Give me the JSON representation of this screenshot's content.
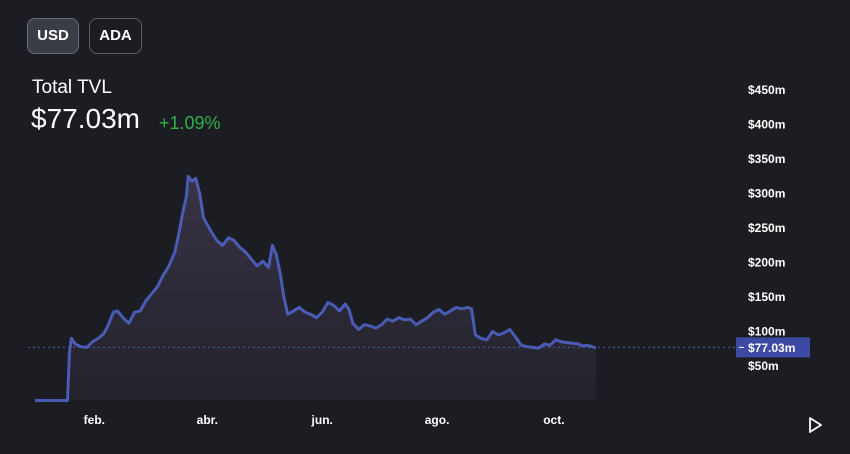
{
  "currency_toggle": {
    "usd_label": "USD",
    "ada_label": "ADA",
    "selected": "USD"
  },
  "header": {
    "label": "Total TVL",
    "value": "$77.03m",
    "change": "+1.09%"
  },
  "colors": {
    "line": "#4a5bb5",
    "fill_top": "#3a3448",
    "change_positive": "#30b24a",
    "current_badge": "#3d4aa3"
  },
  "controls": {
    "play_icon": "play-icon"
  },
  "chart_data": {
    "type": "area",
    "y_ticks": [
      "$50m",
      "$100m",
      "$150m",
      "$200m",
      "$250m",
      "$300m",
      "$350m",
      "$400m",
      "$450m"
    ],
    "y_tick_values": [
      50,
      100,
      150,
      200,
      250,
      300,
      350,
      400,
      450
    ],
    "ylim": [
      0,
      460
    ],
    "x_ticks": [
      "feb.",
      "abr.",
      "jun.",
      "ago.",
      "oct."
    ],
    "x_tick_positions": [
      31,
      90,
      150,
      210,
      271
    ],
    "current_value": 77.03,
    "current_label": "$77.03m",
    "x_unit": "days",
    "points": [
      [
        0,
        0
      ],
      [
        17,
        0
      ],
      [
        18,
        70
      ],
      [
        19,
        90
      ],
      [
        21,
        82
      ],
      [
        24,
        78
      ],
      [
        27,
        77
      ],
      [
        30,
        85
      ],
      [
        33,
        90
      ],
      [
        36,
        97
      ],
      [
        38,
        108
      ],
      [
        41,
        128
      ],
      [
        43,
        130
      ],
      [
        46,
        120
      ],
      [
        49,
        112
      ],
      [
        52,
        128
      ],
      [
        55,
        130
      ],
      [
        58,
        145
      ],
      [
        61,
        155
      ],
      [
        64,
        165
      ],
      [
        67,
        182
      ],
      [
        70,
        195
      ],
      [
        73,
        215
      ],
      [
        75,
        240
      ],
      [
        77,
        270
      ],
      [
        79,
        295
      ],
      [
        80,
        325
      ],
      [
        82,
        318
      ],
      [
        84,
        322
      ],
      [
        86,
        300
      ],
      [
        88,
        265
      ],
      [
        90,
        255
      ],
      [
        92,
        245
      ],
      [
        95,
        232
      ],
      [
        98,
        225
      ],
      [
        101,
        236
      ],
      [
        104,
        232
      ],
      [
        107,
        222
      ],
      [
        110,
        215
      ],
      [
        113,
        205
      ],
      [
        116,
        195
      ],
      [
        119,
        202
      ],
      [
        122,
        193
      ],
      [
        124,
        225
      ],
      [
        126,
        212
      ],
      [
        128,
        185
      ],
      [
        130,
        150
      ],
      [
        132,
        125
      ],
      [
        135,
        130
      ],
      [
        138,
        135
      ],
      [
        141,
        128
      ],
      [
        144,
        125
      ],
      [
        147,
        120
      ],
      [
        150,
        128
      ],
      [
        153,
        142
      ],
      [
        156,
        138
      ],
      [
        159,
        130
      ],
      [
        162,
        140
      ],
      [
        164,
        132
      ],
      [
        166,
        112
      ],
      [
        169,
        103
      ],
      [
        172,
        110
      ],
      [
        175,
        108
      ],
      [
        178,
        105
      ],
      [
        181,
        110
      ],
      [
        184,
        118
      ],
      [
        187,
        115
      ],
      [
        190,
        120
      ],
      [
        193,
        117
      ],
      [
        196,
        118
      ],
      [
        199,
        110
      ],
      [
        202,
        115
      ],
      [
        205,
        120
      ],
      [
        208,
        128
      ],
      [
        211,
        132
      ],
      [
        214,
        125
      ],
      [
        217,
        130
      ],
      [
        220,
        135
      ],
      [
        223,
        133
      ],
      [
        226,
        135
      ],
      [
        228,
        133
      ],
      [
        230,
        95
      ],
      [
        233,
        90
      ],
      [
        236,
        88
      ],
      [
        239,
        100
      ],
      [
        242,
        95
      ],
      [
        245,
        98
      ],
      [
        248,
        103
      ],
      [
        251,
        92
      ],
      [
        254,
        80
      ],
      [
        257,
        78
      ],
      [
        260,
        77
      ],
      [
        263,
        76
      ],
      [
        266,
        82
      ],
      [
        269,
        80
      ],
      [
        272,
        88
      ],
      [
        275,
        85
      ],
      [
        278,
        84
      ],
      [
        281,
        83
      ],
      [
        284,
        82
      ],
      [
        286,
        79
      ],
      [
        288,
        80
      ],
      [
        290,
        79
      ],
      [
        292,
        77
      ],
      [
        293,
        77.03
      ]
    ]
  }
}
